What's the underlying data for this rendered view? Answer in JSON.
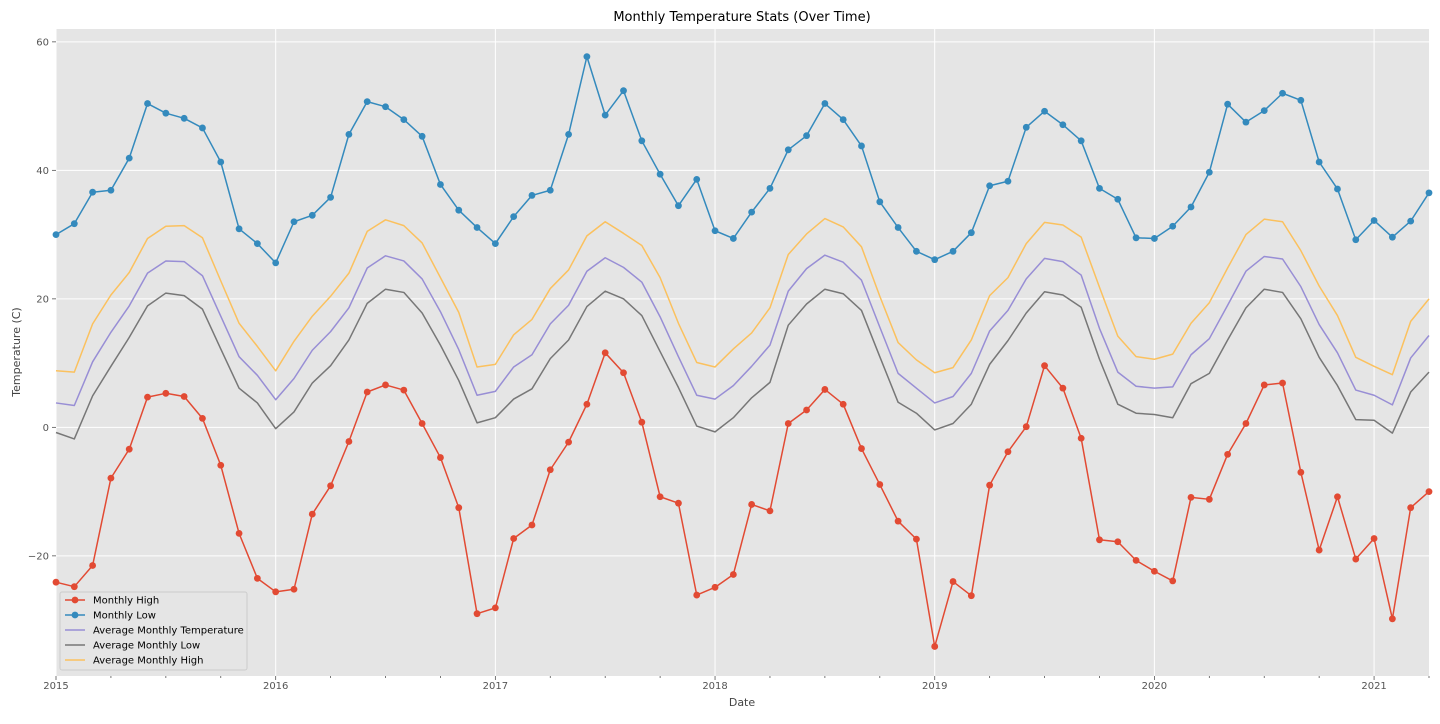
{
  "chart_data": {
    "type": "line",
    "title": "Monthly Temperature Stats (Over Time)",
    "xlabel": "Date",
    "ylabel": "Temperature (C)",
    "x_start": "2015-01",
    "x_ticks": [
      "2015",
      "2016",
      "2017",
      "2018",
      "2019",
      "2020",
      "2021"
    ],
    "y_ticks": [
      -20,
      0,
      20,
      40,
      60
    ],
    "ylim": [
      -38.7,
      62
    ],
    "xlim": [
      "2015-01",
      "2021-04"
    ],
    "grid": true,
    "legend_position": "lower-left",
    "series": [
      {
        "name": "Monthly High",
        "color": "#E24A33",
        "markers": true,
        "values": [
          -24.1,
          -24.8,
          -21.5,
          -7.9,
          -3.4,
          4.7,
          5.3,
          4.8,
          1.4,
          -5.9,
          -16.5,
          -23.5,
          -25.6,
          -25.2,
          -13.5,
          -9.1,
          -2.2,
          5.5,
          6.6,
          5.8,
          0.6,
          -4.7,
          -12.5,
          -29.0,
          -28.1,
          -17.3,
          -15.2,
          -6.6,
          -2.3,
          3.6,
          11.6,
          8.5,
          0.8,
          -10.8,
          -11.8,
          -26.1,
          -24.9,
          -22.9,
          -12.0,
          -13.0,
          0.6,
          2.7,
          5.9,
          3.6,
          -3.3,
          -8.9,
          -14.6,
          -17.4,
          -34.1,
          -24.0,
          -26.2,
          -9.0,
          -3.8,
          0.1,
          9.6,
          6.1,
          -1.7,
          -17.5,
          -17.8,
          -20.7,
          -22.4,
          -23.9,
          -10.9,
          -11.2,
          -4.2,
          0.6,
          6.6,
          6.9,
          -7.0,
          -19.1,
          -10.8,
          -20.5,
          -17.3,
          -29.8,
          -12.5,
          -10.0
        ]
      },
      {
        "name": "Monthly Low",
        "color": "#348ABD",
        "markers": true,
        "values": [
          30.0,
          31.7,
          36.6,
          36.9,
          41.9,
          50.4,
          48.9,
          48.1,
          46.6,
          41.3,
          30.9,
          28.6,
          25.6,
          32.0,
          33.0,
          35.8,
          45.6,
          50.7,
          49.9,
          47.9,
          45.3,
          37.8,
          33.8,
          31.1,
          28.6,
          32.8,
          36.1,
          36.9,
          45.6,
          57.7,
          48.6,
          52.4,
          44.6,
          39.4,
          34.5,
          38.6,
          30.6,
          29.4,
          33.5,
          37.2,
          43.2,
          45.4,
          50.4,
          47.9,
          43.8,
          35.1,
          31.1,
          27.4,
          26.1,
          27.4,
          30.3,
          37.6,
          38.3,
          46.7,
          49.2,
          47.1,
          44.6,
          37.2,
          35.5,
          29.5,
          29.4,
          31.3,
          34.3,
          39.7,
          50.3,
          47.5,
          49.3,
          52.0,
          50.9,
          41.3,
          37.1,
          29.2,
          32.2,
          29.6,
          32.1,
          36.5
        ]
      },
      {
        "name": "Average Monthly Temperature",
        "color": "#988ED5",
        "markers": false,
        "values": [
          3.8,
          3.4,
          10.2,
          14.8,
          18.9,
          24.0,
          25.9,
          25.8,
          23.6,
          17.3,
          11.0,
          8.1,
          4.3,
          7.6,
          12.0,
          14.9,
          18.6,
          24.8,
          26.7,
          25.9,
          23.1,
          18.0,
          12.1,
          5.0,
          5.6,
          9.4,
          11.3,
          16.1,
          19.0,
          24.3,
          26.4,
          24.9,
          22.6,
          17.2,
          11.0,
          5.0,
          4.4,
          6.5,
          9.5,
          12.8,
          21.2,
          24.7,
          26.8,
          25.7,
          22.9,
          15.6,
          8.4,
          6.1,
          3.8,
          4.8,
          8.4,
          15.0,
          18.2,
          23.1,
          26.3,
          25.8,
          23.7,
          15.4,
          8.6,
          6.4,
          6.1,
          6.3,
          11.3,
          13.8,
          19.0,
          24.3,
          26.6,
          26.2,
          21.9,
          16.0,
          11.6,
          5.8,
          5.0,
          3.5,
          10.8,
          14.3
        ]
      },
      {
        "name": "Average Monthly Low",
        "color": "#777777",
        "markers": false,
        "values": [
          -0.8,
          -1.8,
          4.9,
          9.5,
          14.0,
          18.9,
          20.9,
          20.5,
          18.4,
          12.2,
          6.1,
          3.8,
          -0.2,
          2.4,
          6.9,
          9.6,
          13.6,
          19.3,
          21.5,
          21.0,
          17.8,
          12.8,
          7.3,
          0.7,
          1.5,
          4.4,
          6.0,
          10.7,
          13.6,
          18.8,
          21.2,
          20.0,
          17.4,
          11.8,
          6.2,
          0.2,
          -0.7,
          1.5,
          4.6,
          7.0,
          15.9,
          19.2,
          21.5,
          20.8,
          18.2,
          11.0,
          3.9,
          2.2,
          -0.4,
          0.6,
          3.6,
          9.8,
          13.5,
          17.8,
          21.1,
          20.6,
          18.7,
          10.6,
          3.6,
          2.2,
          2.0,
          1.5,
          6.8,
          8.4,
          13.6,
          18.6,
          21.5,
          21.0,
          16.9,
          10.9,
          6.5,
          1.2,
          1.1,
          -0.9,
          5.5,
          8.6
        ]
      },
      {
        "name": "Average Monthly High",
        "color": "#FBC15E",
        "markers": false,
        "values": [
          8.8,
          8.6,
          16.1,
          20.6,
          24.1,
          29.4,
          31.3,
          31.4,
          29.5,
          22.8,
          16.2,
          12.6,
          8.8,
          13.4,
          17.3,
          20.4,
          24.0,
          30.5,
          32.3,
          31.4,
          28.7,
          23.3,
          17.9,
          9.4,
          9.8,
          14.4,
          16.8,
          21.6,
          24.5,
          29.8,
          32.0,
          30.2,
          28.3,
          23.3,
          16.2,
          10.1,
          9.4,
          12.2,
          14.7,
          18.6,
          26.9,
          30.1,
          32.5,
          31.2,
          28.1,
          20.4,
          13.2,
          10.5,
          8.5,
          9.3,
          13.6,
          20.5,
          23.3,
          28.6,
          31.9,
          31.5,
          29.6,
          21.8,
          14.2,
          11.0,
          10.6,
          11.4,
          16.2,
          19.4,
          24.8,
          30.0,
          32.4,
          32.0,
          27.5,
          22.0,
          17.4,
          10.9,
          9.5,
          8.2,
          16.5,
          20.0
        ]
      }
    ]
  }
}
